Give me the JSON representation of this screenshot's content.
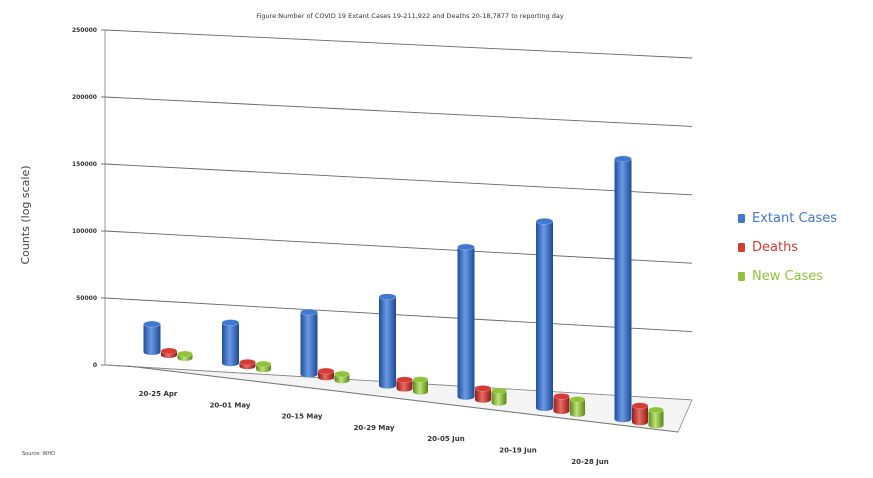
{
  "chart_data": {
    "type": "bar",
    "title": "Figure:Number of COVID 19 Extant Cases 19-211,922 and Deaths 20-18,7877 to reporting day",
    "ylabel": "Counts (log scale)",
    "xlabel": "",
    "ylim": [
      0,
      250000
    ],
    "y_ticks": [
      "250000",
      "200000",
      "150000",
      "100000",
      "50000",
      "0"
    ],
    "y_tick_values": [
      250000,
      200000,
      150000,
      100000,
      50000,
      0
    ],
    "categories": [
      "20-25 Apr",
      "20-01 May",
      "20-15 May",
      "20-29 May",
      "20-05 Jun",
      "20-19 Jun",
      "20-28 Jun"
    ],
    "series": [
      {
        "name": "Extant Cases",
        "color": "#3f78d0",
        "values": [
          22000,
          32000,
          49000,
          70000,
          118000,
          147000,
          205000
        ]
      },
      {
        "name": "Deaths",
        "color": "#d63a33",
        "values": [
          1800,
          3000,
          5000,
          7000,
          9000,
          11500,
          13000
        ]
      },
      {
        "name": "New Cases",
        "color": "#8fc43a",
        "values": [
          3000,
          4000,
          5000,
          9500,
          9500,
          11500,
          12000
        ]
      }
    ],
    "grid": true,
    "legend_position": "right",
    "source": "Source: WHO"
  }
}
